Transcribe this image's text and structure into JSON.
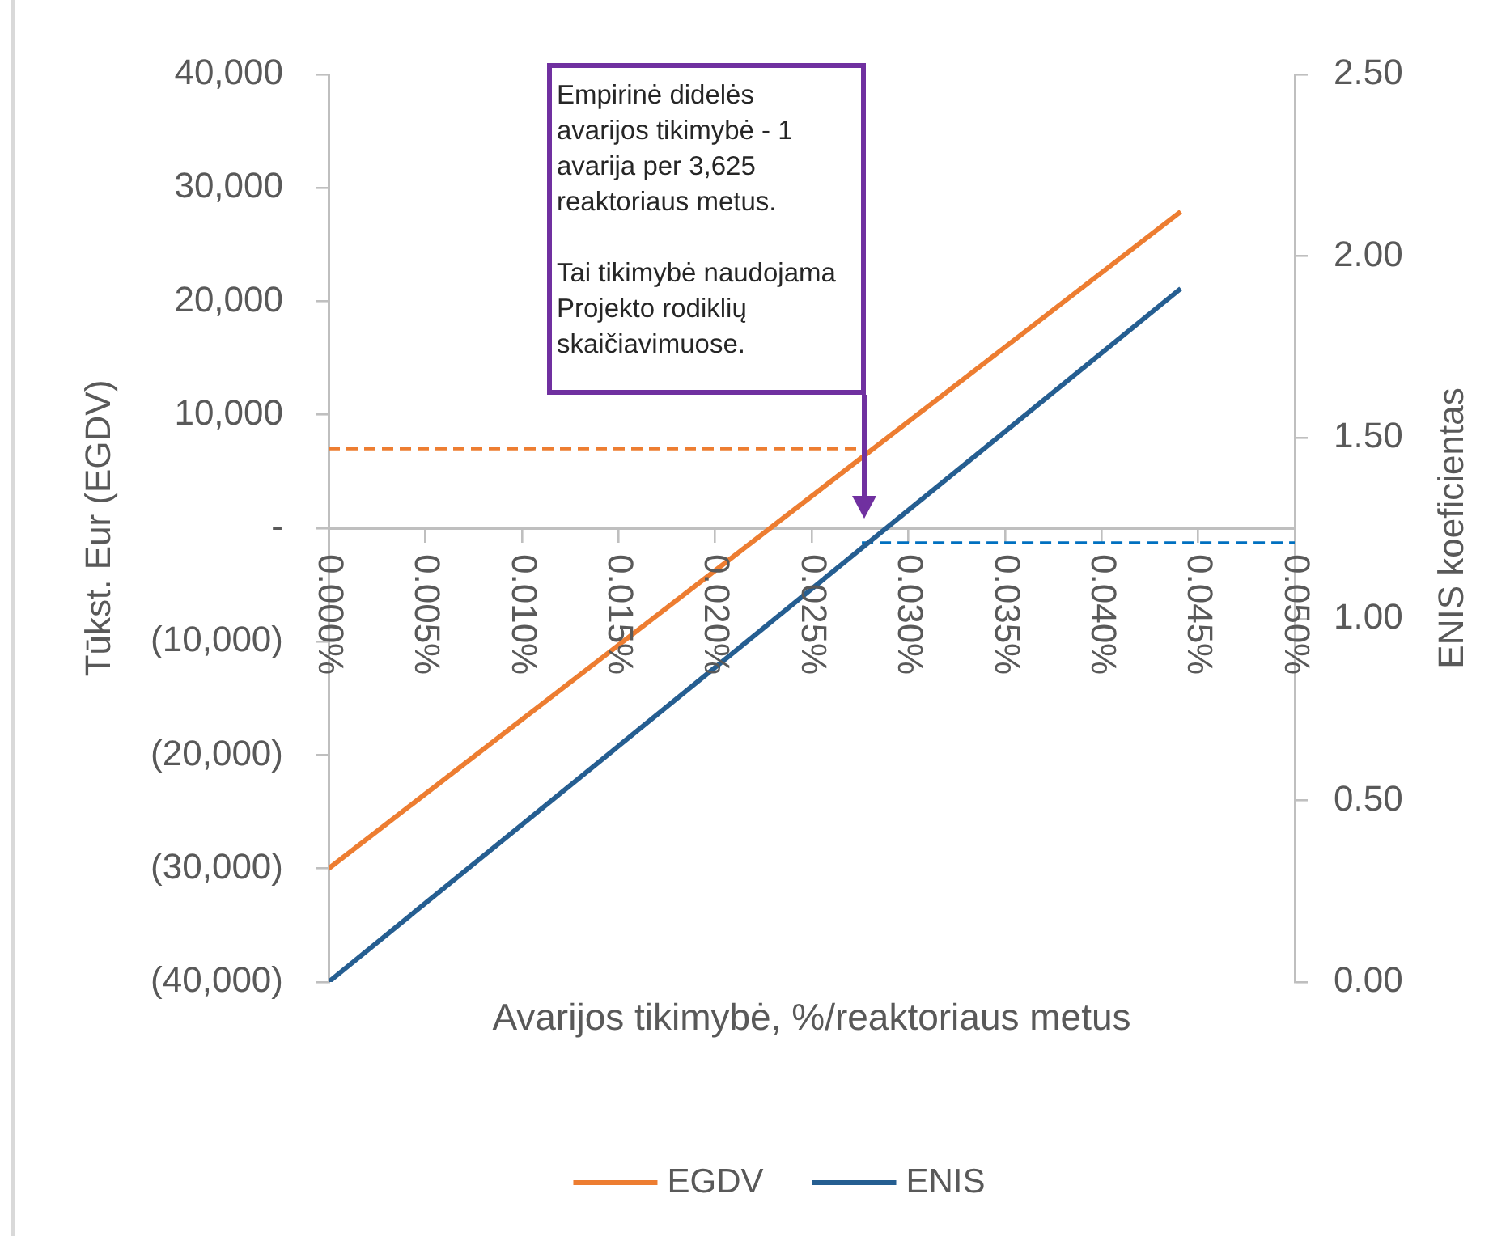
{
  "chart_data": {
    "type": "line",
    "xlabel": "Avarijos tikimybė, %/reaktoriaus metus",
    "ylabel": "Tūkst. Eur (EGDV)",
    "y2label": "ENIS koeficientas",
    "xlim": [
      0,
      0.05
    ],
    "xticks": [
      {
        "value": 0,
        "label": "0.000%"
      },
      {
        "value": 0.005,
        "label": "0.005%"
      },
      {
        "value": 0.01,
        "label": "0.010%"
      },
      {
        "value": 0.015,
        "label": "0.015%"
      },
      {
        "value": 0.02,
        "label": "0.020%"
      },
      {
        "value": 0.025,
        "label": "0.025%"
      },
      {
        "value": 0.03,
        "label": "0.030%"
      },
      {
        "value": 0.035,
        "label": "0.035%"
      },
      {
        "value": 0.04,
        "label": "0.040%"
      },
      {
        "value": 0.045,
        "label": "0.045%"
      },
      {
        "value": 0.05,
        "label": "0.050%"
      }
    ],
    "ylim": [
      -40000,
      40000
    ],
    "yticks": [
      {
        "value": -40000,
        "label": "(40,000)"
      },
      {
        "value": -30000,
        "label": "(30,000)"
      },
      {
        "value": -20000,
        "label": "(20,000)"
      },
      {
        "value": -10000,
        "label": "(10,000)"
      },
      {
        "value": 0,
        "label": "-"
      },
      {
        "value": 10000,
        "label": "10,000"
      },
      {
        "value": 20000,
        "label": "20,000"
      },
      {
        "value": 30000,
        "label": "30,000"
      },
      {
        "value": 40000,
        "label": "40,000"
      }
    ],
    "y2lim": [
      0,
      2.5
    ],
    "y2ticks": [
      {
        "value": 0,
        "label": "0.00"
      },
      {
        "value": 0.5,
        "label": "0.50"
      },
      {
        "value": 1,
        "label": "1.00"
      },
      {
        "value": 1.5,
        "label": "1.50"
      },
      {
        "value": 2,
        "label": "2.00"
      },
      {
        "value": 2.5,
        "label": "2.50"
      }
    ],
    "series": [
      {
        "name": "EGDV",
        "color": "#ed7d31",
        "x": [
          0,
          0.0441
        ],
        "values": [
          -30000,
          27900
        ]
      },
      {
        "name": "ENIS",
        "color": "#255e91",
        "axis": "y2",
        "x": [
          0,
          0.0441
        ],
        "values": [
          0,
          1.91
        ]
      },
      {
        "color": "#ed7d31",
        "x": [
          0,
          0.0276
        ],
        "values": [
          7000,
          7000
        ],
        "line_style": "dashed"
      },
      {
        "color": "#0070c0",
        "axis": "y2",
        "x": [
          0.0276,
          0.05
        ],
        "values": [
          1.21,
          1.21
        ],
        "line_style": "dashed"
      }
    ],
    "annotations": [
      "Empirinė didelės avarijos tikimybė - 1 avarija per 3,625 reaktoriaus metus.",
      "Tai tikimybė naudojama Projekto rodiklių skaičiavimuose."
    ],
    "legend": "bottom",
    "marker": "none"
  }
}
